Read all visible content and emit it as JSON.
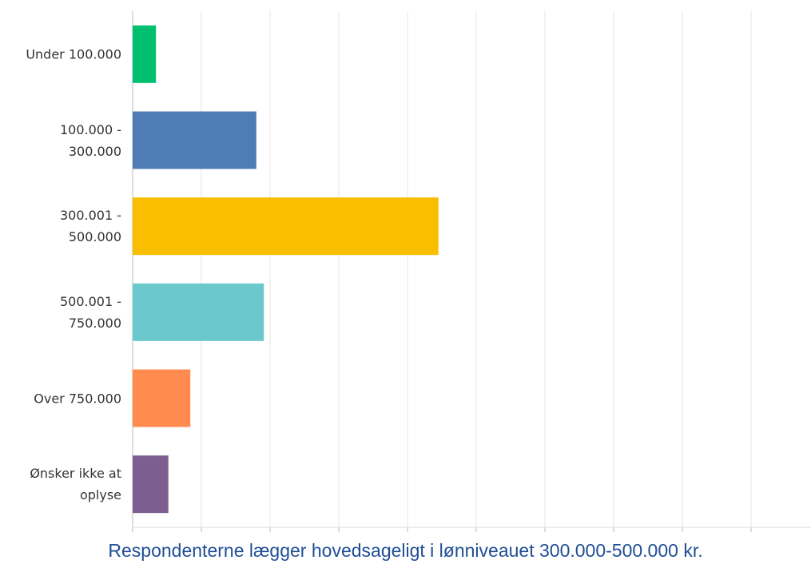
{
  "chart_data": {
    "type": "bar",
    "orientation": "horizontal",
    "categories": [
      "Under 100.000",
      "100.000 -\n300.000",
      "300.001 -\n500.000",
      "500.001 -\n750.000",
      "Over 750.000",
      "Ønsker ikke at\noplyse"
    ],
    "values": [
      3.4,
      18.0,
      44.5,
      19.1,
      8.4,
      5.2
    ],
    "colors": [
      "#00bf6f",
      "#507cb6",
      "#f9be00",
      "#6bc8cd",
      "#ff8b4f",
      "#7d5e90"
    ],
    "xlim": [
      0,
      100
    ],
    "xticks": [
      0,
      10,
      20,
      30,
      40,
      50,
      60,
      70,
      80,
      90
    ],
    "grid": true,
    "caption": "Respondenterne lægger hovedsageligt i lønniveauet 300.000-500.000 kr."
  }
}
